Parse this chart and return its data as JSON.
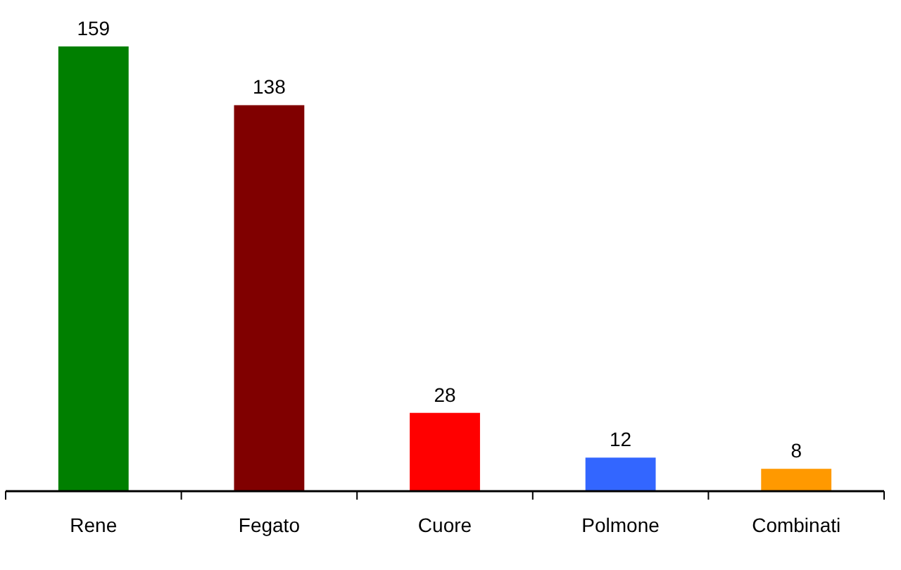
{
  "chart_data": {
    "type": "bar",
    "categories": [
      "Rene",
      "Fegato",
      "Cuore",
      "Polmone",
      "Combinati"
    ],
    "values": [
      159,
      138,
      28,
      12,
      8
    ],
    "colors": [
      "#007f00",
      "#800000",
      "#ff0000",
      "#3366ff",
      "#ff9900"
    ],
    "data_labels": true
  }
}
